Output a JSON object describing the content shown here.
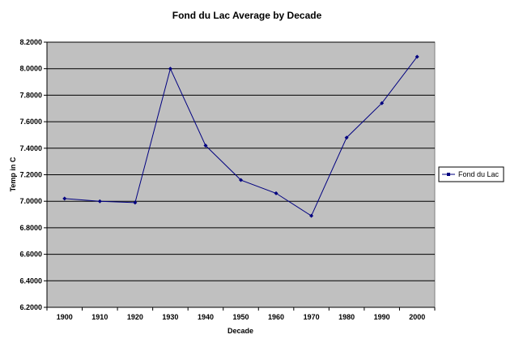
{
  "chart_data": {
    "type": "line",
    "title": "Fond du Lac Average by Decade",
    "xlabel": "Decade",
    "ylabel": "Temp in C",
    "categories": [
      "1900",
      "1910",
      "1920",
      "1930",
      "1940",
      "1950",
      "1960",
      "1970",
      "1980",
      "1990",
      "2000"
    ],
    "series": [
      {
        "name": "Fond du Lac",
        "values": [
          7.02,
          7.0,
          6.99,
          8.0,
          7.42,
          7.16,
          7.06,
          6.89,
          7.48,
          7.74,
          8.09
        ]
      }
    ],
    "ylim": [
      6.2,
      8.2
    ],
    "yticks": [
      "6.2000",
      "6.4000",
      "6.6000",
      "6.8000",
      "7.0000",
      "7.2000",
      "7.4000",
      "7.6000",
      "7.8000",
      "8.0000",
      "8.2000"
    ],
    "grid": true,
    "legend": "right",
    "colors": {
      "plot_background": "#c0c0c0",
      "gridline": "#000000",
      "series": "#000080"
    }
  }
}
